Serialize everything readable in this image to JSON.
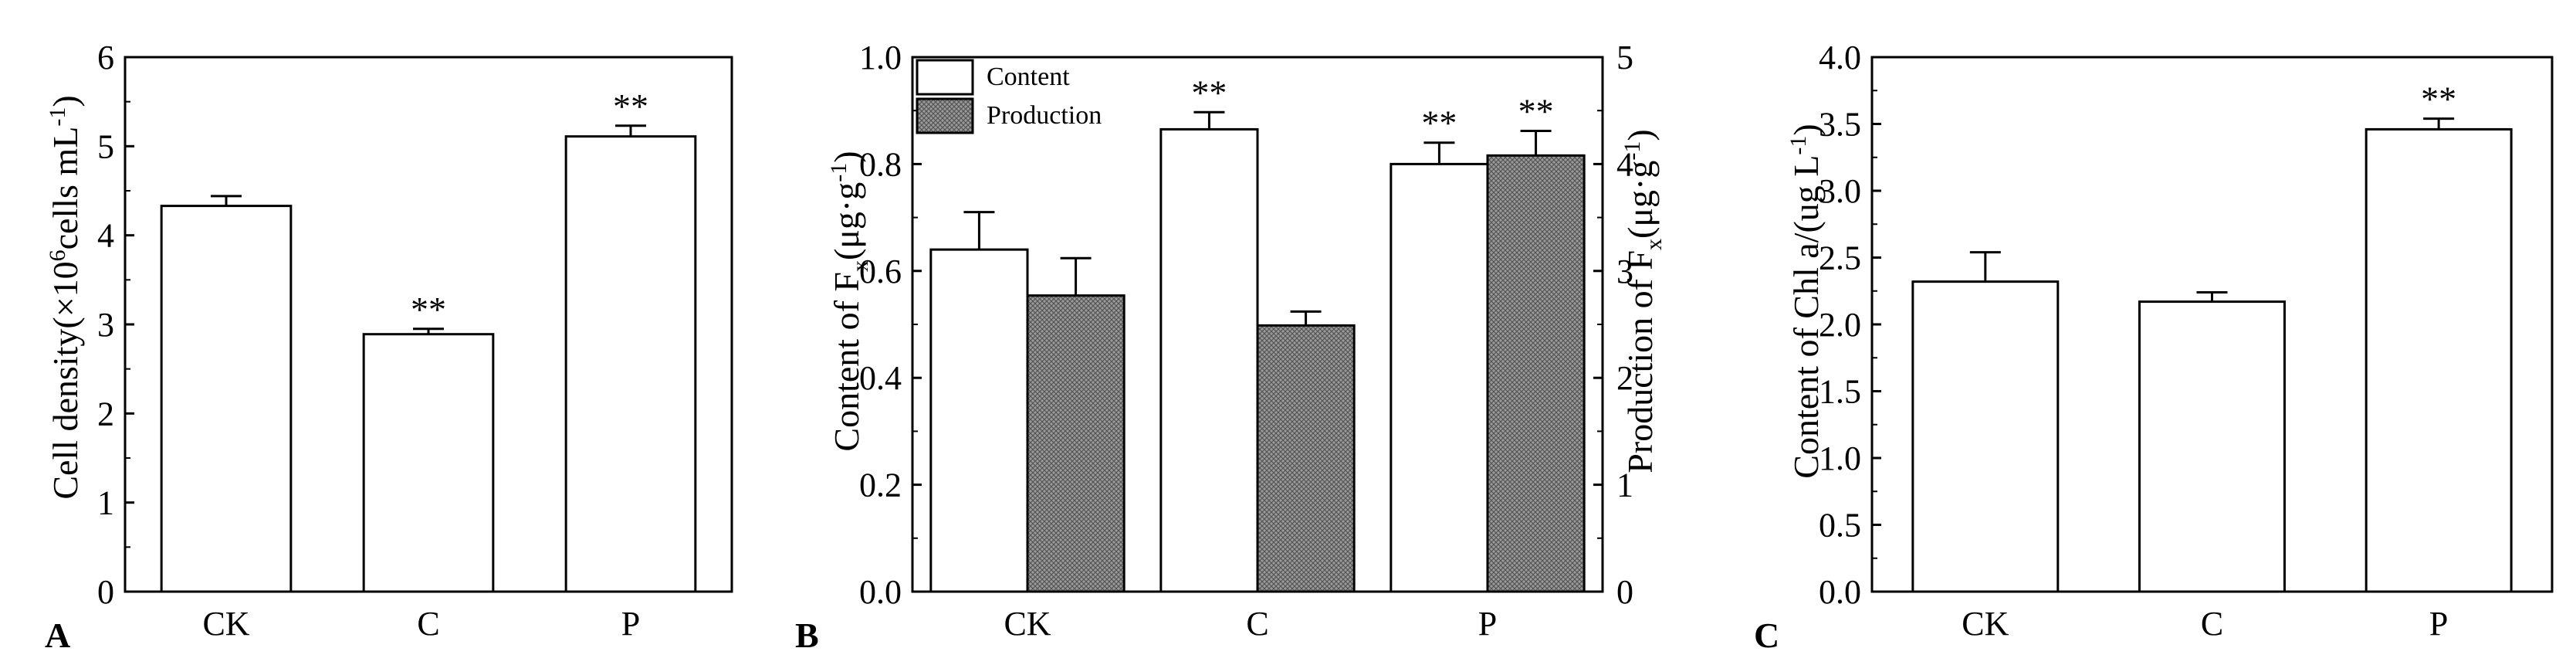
{
  "chart_data": [
    {
      "panel_label": "A",
      "type": "bar",
      "categories": [
        "CK",
        "C",
        "P"
      ],
      "series": [
        {
          "values": [
            4.33,
            2.89,
            5.11
          ],
          "errors": [
            0.11,
            0.06,
            0.12
          ],
          "annotations": [
            "",
            "**",
            "**"
          ]
        }
      ],
      "ylabel": {
        "main": "Cell density(×10",
        "sup1": "6",
        "mid": "cells mL",
        "sup2": "-1",
        "end": ")"
      },
      "ylim": [
        0,
        6
      ],
      "yticks": [
        "0",
        "1",
        "2",
        "3",
        "4",
        "5",
        "6"
      ],
      "grid": false
    },
    {
      "panel_label": "B",
      "type": "bar",
      "categories": [
        "CK",
        "C",
        "P"
      ],
      "series": [
        {
          "name": "Content",
          "axis": "left",
          "fill": "#ffffff",
          "values": [
            0.64,
            0.865,
            0.8
          ],
          "errors": [
            0.07,
            0.032,
            0.04
          ],
          "annotations": [
            "",
            "**",
            "**"
          ]
        },
        {
          "name": "Production",
          "axis": "right",
          "fill": "#8f8f8f",
          "values": [
            2.77,
            2.49,
            4.08
          ],
          "errors": [
            0.35,
            0.13,
            0.23
          ],
          "annotations": [
            "",
            "",
            "**"
          ]
        }
      ],
      "ylabel_left": {
        "main": "Content of F",
        "sub": "x",
        "end": "(μg·g",
        "sup": "-1",
        "close": ")"
      },
      "ylabel_right": {
        "main": "Production of F",
        "sub": "x",
        "end": "(μg·g",
        "sup": "-1",
        "close": ")"
      },
      "ylim_left": [
        0,
        1.0
      ],
      "ylim_right": [
        0,
        5
      ],
      "yticks_left": [
        "0.0",
        "0.2",
        "0.4",
        "0.6",
        "0.8",
        "1.0"
      ],
      "yticks_right": [
        "0",
        "1",
        "2",
        "3",
        "4",
        "5"
      ],
      "legend_position": "top-left",
      "grid": false
    },
    {
      "panel_label": "C",
      "type": "bar",
      "categories": [
        "CK",
        "C",
        "P"
      ],
      "series": [
        {
          "values": [
            2.32,
            2.17,
            3.46
          ],
          "errors": [
            0.22,
            0.07,
            0.08
          ],
          "annotations": [
            "",
            "",
            "**"
          ]
        }
      ],
      "ylabel": {
        "main": "Content of Chl a/(ug L",
        "sup": "-1",
        "end": ")"
      },
      "ylim": [
        0,
        4.0
      ],
      "yticks": [
        "0.0",
        "0.5",
        "1.0",
        "1.5",
        "2.0",
        "2.5",
        "3.0",
        "3.5",
        "4.0"
      ],
      "grid": false
    }
  ]
}
